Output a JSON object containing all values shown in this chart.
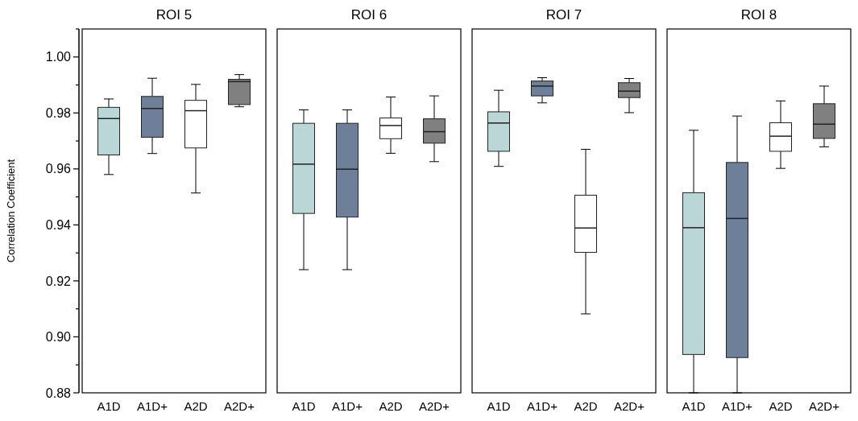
{
  "chart_data": [
    {
      "type": "box",
      "title": "ROI 5",
      "ylabel": "Correlation Coefficient",
      "categories": [
        "A1D",
        "A1D+",
        "A2D",
        "A2D+"
      ],
      "colors": [
        "#bad6d6",
        "#6e7f99",
        "#ffffff",
        "#808080"
      ],
      "ylim": [
        0.88,
        1.01
      ],
      "yticks": [
        0.88,
        {
          "value": 0.89,
          "label": null
        },
        {
          "value": 0.9,
          "label": "0.90"
        },
        {
          "value": 0.91,
          "label": null
        },
        0.92,
        {
          "value": 0.93,
          "label": null
        },
        0.94,
        {
          "value": 0.95,
          "label": null
        },
        0.96,
        {
          "value": 0.97,
          "label": null
        },
        0.98,
        {
          "value": 0.99,
          "label": null
        },
        {
          "value": 1,
          "label": "1.00"
        },
        {
          "value": 1.01,
          "label": null
        }
      ],
      "boxes": [
        {
          "low": 0.958,
          "q1": 0.965,
          "median": 0.978,
          "q3": 0.982,
          "high": 0.985
        },
        {
          "low": 0.9655,
          "q1": 0.9713,
          "median": 0.9816,
          "q3": 0.9859,
          "high": 0.9924
        },
        {
          "low": 0.9514,
          "q1": 0.9675,
          "median": 0.9808,
          "q3": 0.9845,
          "high": 0.9902
        },
        {
          "low": 0.9822,
          "q1": 0.983,
          "median": 0.9912,
          "q3": 0.992,
          "high": 0.9937
        }
      ]
    },
    {
      "type": "box",
      "title": "ROI 6",
      "categories": [
        "A1D",
        "A1D+",
        "A2D",
        "A2D+"
      ],
      "colors": [
        "#bad6d6",
        "#6e7f99",
        "#ffffff",
        "#808080"
      ],
      "ylim": [
        0.88,
        1.01
      ],
      "tick_labels": "x",
      "boxes": [
        {
          "low": 0.924,
          "q1": 0.9441,
          "median": 0.9617,
          "q3": 0.9763,
          "high": 0.9811
        },
        {
          "low": 0.924,
          "q1": 0.9428,
          "median": 0.9599,
          "q3": 0.9763,
          "high": 0.9811
        },
        {
          "low": 0.9656,
          "q1": 0.9708,
          "median": 0.9755,
          "q3": 0.9782,
          "high": 0.9857
        },
        {
          "low": 0.9626,
          "q1": 0.9692,
          "median": 0.9733,
          "q3": 0.9779,
          "high": 0.9861
        }
      ]
    },
    {
      "type": "box",
      "title": "ROI 7",
      "categories": [
        "A1D",
        "A1D+",
        "A2D",
        "A2D+"
      ],
      "colors": [
        "#bad6d6",
        "#6e7f99",
        "#ffffff",
        "#808080"
      ],
      "ylim": [
        0.88,
        1.01
      ],
      "tick_labels": "x",
      "boxes": [
        {
          "low": 0.9609,
          "q1": 0.9663,
          "median": 0.9764,
          "q3": 0.9804,
          "high": 0.9881
        },
        {
          "low": 0.9836,
          "q1": 0.9861,
          "median": 0.9896,
          "q3": 0.9914,
          "high": 0.9926
        },
        {
          "low": 0.9082,
          "q1": 0.9302,
          "median": 0.9389,
          "q3": 0.9506,
          "high": 0.967
        },
        {
          "low": 0.9801,
          "q1": 0.9855,
          "median": 0.9878,
          "q3": 0.9908,
          "high": 0.9923
        }
      ]
    },
    {
      "type": "box",
      "title": "ROI 8",
      "categories": [
        "A1D",
        "A1D+",
        "A2D",
        "A2D+"
      ],
      "colors": [
        "#bad6d6",
        "#6e7f99",
        "#ffffff",
        "#808080"
      ],
      "ylim": [
        0.88,
        1.01
      ],
      "tick_labels": "x",
      "boxes": [
        {
          "low": 0.88,
          "q1": 0.8937,
          "median": 0.939,
          "q3": 0.9515,
          "high": 0.9738
        },
        {
          "low": 0.88,
          "q1": 0.8926,
          "median": 0.9423,
          "q3": 0.9623,
          "high": 0.9789
        },
        {
          "low": 0.9602,
          "q1": 0.9663,
          "median": 0.9717,
          "q3": 0.9765,
          "high": 0.9843
        },
        {
          "low": 0.9679,
          "q1": 0.9709,
          "median": 0.976,
          "q3": 0.9833,
          "high": 0.9896
        }
      ]
    }
  ]
}
